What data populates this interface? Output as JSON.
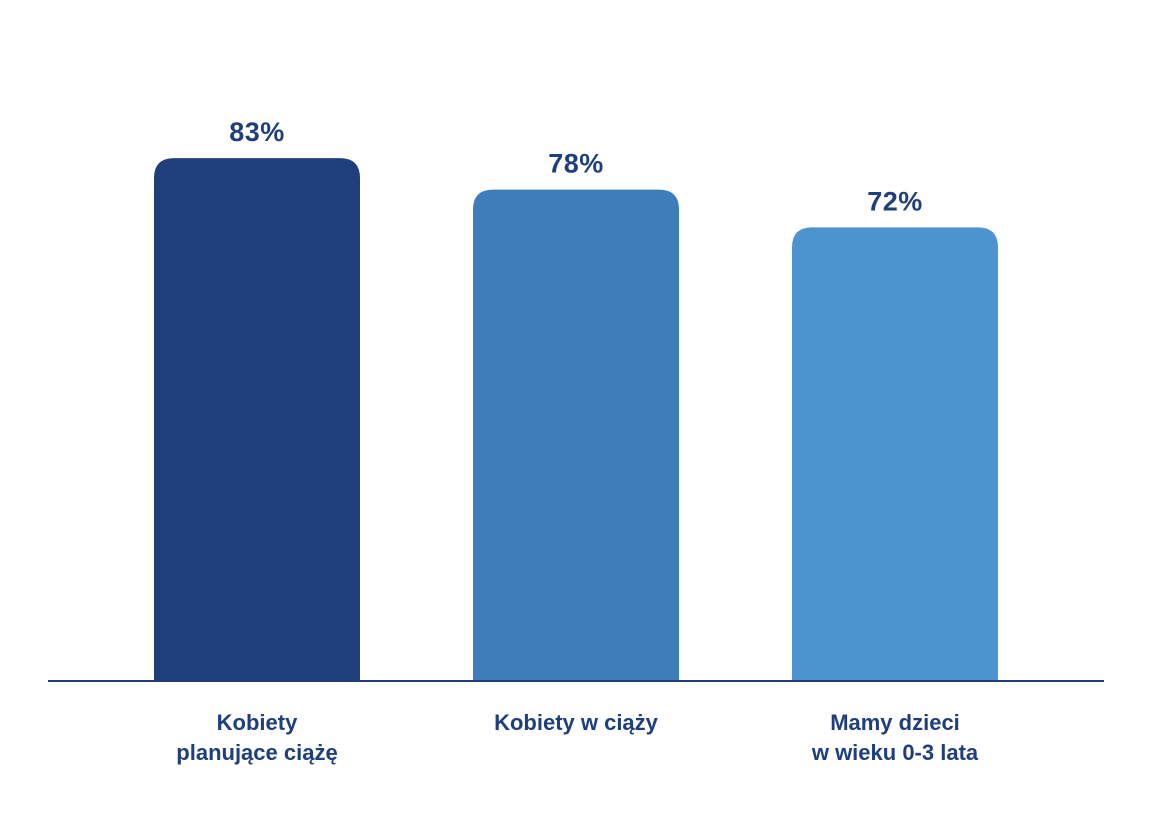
{
  "chart_data": {
    "type": "bar",
    "categories": [
      [
        "Kobiety",
        "planujące ciążę"
      ],
      [
        "Kobiety w ciąży"
      ],
      [
        "Mamy dzieci",
        "w wieku 0-3 lata"
      ]
    ],
    "values": [
      83,
      78,
      72
    ],
    "value_labels": [
      "83%",
      "78%",
      "72%"
    ],
    "ylim": [
      0,
      100
    ],
    "grid": false,
    "legend": "none",
    "title": "",
    "xlabel": "",
    "ylabel": ""
  },
  "colors": {
    "bars": [
      "#1e3f7c",
      "#3f7cba",
      "#4d93d0"
    ],
    "value_text": "#1e3f7c",
    "axis": "#1e3f7c"
  }
}
